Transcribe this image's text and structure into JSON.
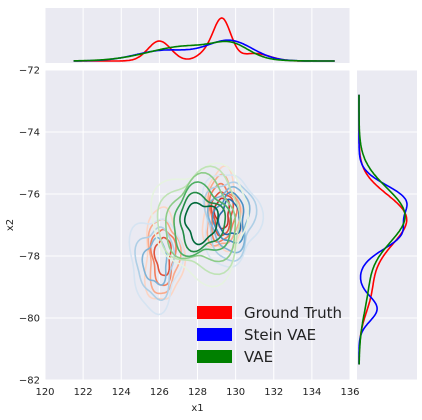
{
  "chart_data": {
    "type": "joint-kde",
    "xlabel": "x1",
    "ylabel": "x2",
    "xlim": [
      120,
      136
    ],
    "ylim": [
      -82,
      -72
    ],
    "x_ticks": [
      120,
      122,
      124,
      126,
      128,
      130,
      132,
      134,
      136
    ],
    "y_ticks": [
      -82,
      -80,
      -78,
      -76,
      -74,
      -72
    ],
    "grid": true,
    "legend_position": "bottom-right",
    "legend": [
      {
        "name": "Ground Truth",
        "color": "#ff0000"
      },
      {
        "name": "Stein VAE",
        "color": "#0000ff"
      },
      {
        "name": "VAE",
        "color": "#008000"
      }
    ],
    "series": [
      {
        "name": "Ground Truth",
        "color": "#ff0000",
        "x_components": [
          {
            "mean": 126.0,
            "sd": 0.6,
            "weight": 0.3
          },
          {
            "mean": 128.5,
            "sd": 0.5,
            "weight": 0.1
          },
          {
            "mean": 129.3,
            "sd": 0.45,
            "weight": 0.45
          },
          {
            "mean": 131.0,
            "sd": 0.8,
            "weight": 0.15
          }
        ],
        "y_components": [
          {
            "mean": -76.6,
            "sd": 0.7,
            "weight": 0.5
          },
          {
            "mean": -77.5,
            "sd": 0.8,
            "weight": 0.35
          },
          {
            "mean": -79.2,
            "sd": 0.7,
            "weight": 0.15
          }
        ]
      },
      {
        "name": "Stein VAE",
        "color": "#0000ff",
        "x_components": [
          {
            "mean": 126.3,
            "sd": 1.5,
            "weight": 0.4
          },
          {
            "mean": 129.7,
            "sd": 1.2,
            "weight": 0.6
          }
        ],
        "y_components": [
          {
            "mean": -76.2,
            "sd": 0.5,
            "weight": 0.45
          },
          {
            "mean": -77.3,
            "sd": 0.5,
            "weight": 0.4
          },
          {
            "mean": -79.7,
            "sd": 0.4,
            "weight": 0.15
          }
        ]
      },
      {
        "name": "VAE",
        "color": "#008000",
        "x_components": [
          {
            "mean": 127.5,
            "sd": 2.0,
            "weight": 0.75
          },
          {
            "mean": 129.8,
            "sd": 0.9,
            "weight": 0.25
          }
        ],
        "y_components": [
          {
            "mean": -76.7,
            "sd": 0.9,
            "weight": 0.85
          },
          {
            "mean": -79.0,
            "sd": 0.9,
            "weight": 0.15
          }
        ]
      }
    ],
    "contours": [
      {
        "series": "Ground Truth",
        "colors": [
          "#fcd5c4",
          "#f9a98a",
          "#f27e5c",
          "#e0533c",
          "#c4302b"
        ],
        "center": [
          129.3,
          -76.6
        ],
        "radius": [
          0.6,
          0.8
        ]
      },
      {
        "series": "Ground Truth",
        "colors": [
          "#fcd5c4",
          "#f9a98a",
          "#f27e5c",
          "#e0533c"
        ],
        "center": [
          126.2,
          -78.0
        ],
        "radius": [
          0.6,
          0.9
        ]
      },
      {
        "series": "Stein VAE",
        "colors": [
          "#d6e4f2",
          "#aecfe6",
          "#7fb3d6",
          "#4a90c2",
          "#2569a8"
        ],
        "center": [
          129.7,
          -76.8
        ],
        "radius": [
          0.9,
          0.9
        ]
      },
      {
        "series": "Stein VAE",
        "colors": [
          "#d6e4f2",
          "#aecfe6",
          "#7fb3d6"
        ],
        "center": [
          125.8,
          -78.2
        ],
        "radius": [
          0.8,
          0.9
        ]
      },
      {
        "series": "VAE",
        "colors": [
          "#e6f3e0",
          "#bfe3b5",
          "#8ccc87",
          "#4caf62",
          "#238b45",
          "#00693a"
        ],
        "center": [
          128.2,
          -76.9
        ],
        "radius": [
          1.5,
          1.1
        ]
      }
    ]
  }
}
